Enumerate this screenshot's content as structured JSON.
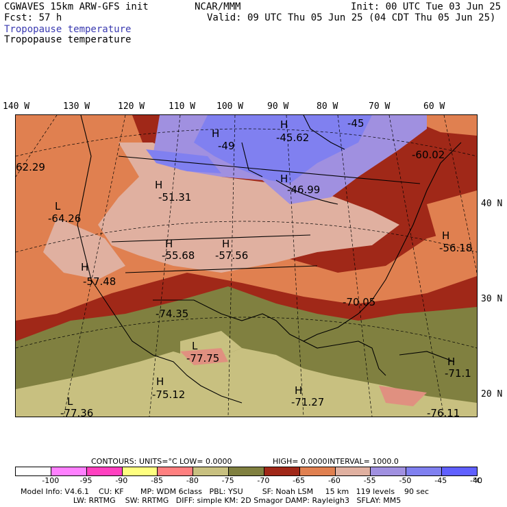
{
  "header": {
    "model": "CGWAVES 15km ARW-GFS init",
    "forecast": "Fcst:   57 h",
    "org": "NCAR/MMM",
    "init": "Init: 00 UTC Tue 03 Jun 25",
    "valid": "Valid: 09 UTC Thu 05 Jun 25 (04 CDT Thu 05 Jun 25)",
    "field_title_colored": "Tropopause temperature",
    "field_title": "Tropopause temperature"
  },
  "longitude_labels": [
    "140 W",
    "130 W",
    "120 W",
    "110 W",
    "100 W",
    "90 W",
    "80 W",
    "70 W",
    "60 W"
  ],
  "latitude_labels": [
    "40 N",
    "30 N",
    "20 N"
  ],
  "map_labels": [
    {
      "hl": "H",
      "value": "-49"
    },
    {
      "hl": "H",
      "value": "-45.62"
    },
    {
      "hl": "",
      "value": "-45"
    },
    {
      "hl": "",
      "value": "62.29"
    },
    {
      "hl": "",
      "value": "-60.02"
    },
    {
      "hl": "H",
      "value": "-51.31"
    },
    {
      "hl": "H",
      "value": "-46.99"
    },
    {
      "hl": "L",
      "value": "-64.26"
    },
    {
      "hl": "H",
      "value": "-55.68"
    },
    {
      "hl": "H",
      "value": "-57.56"
    },
    {
      "hl": "H",
      "value": "-56.18"
    },
    {
      "hl": "H",
      "value": "-57.48"
    },
    {
      "hl": "",
      "value": "-70.05"
    },
    {
      "hl": "",
      "value": "-74.35"
    },
    {
      "hl": "L",
      "value": "-77.75"
    },
    {
      "hl": "H",
      "value": "-71.1"
    },
    {
      "hl": "H",
      "value": "-75.12"
    },
    {
      "hl": "H",
      "value": "-71.27"
    },
    {
      "hl": "L",
      "value": "-77.36"
    },
    {
      "hl": "",
      "value": "-76.11"
    }
  ],
  "contour_info": {
    "contours": "CONTOURS:",
    "units": "UNITS=°C",
    "low": "LOW=  0.0000",
    "high": "HIGH=  0.0000",
    "interval": "INTERVAL=   1000.0"
  },
  "colorbar": {
    "colors": [
      "#ffffff",
      "#ff80ff",
      "#ff40c0",
      "#ffff80",
      "#ff8080",
      "#c8c080",
      "#808040",
      "#a02818",
      "#e08050",
      "#e0b0a0",
      "#a090e0",
      "#8080f0",
      "#6060ff"
    ],
    "ticks": [
      "-100",
      "-95",
      "-90",
      "-85",
      "-80",
      "-75",
      "-70",
      "-65",
      "-60",
      "-55",
      "-50",
      "-45",
      "-40"
    ],
    "unit": "°C"
  },
  "footer": {
    "line1": "Model Info: V4.6.1    CU: KF       MP: WDM 6class   PBL: YSU        SF: Noah LSM     15 km   119 levels    90 sec",
    "line2": "                      LW: RRTMG    SW: RRTMG   DIFF: simple KM: 2D Smagor DAMP: Rayleigh3   SFLAY: MM5"
  }
}
